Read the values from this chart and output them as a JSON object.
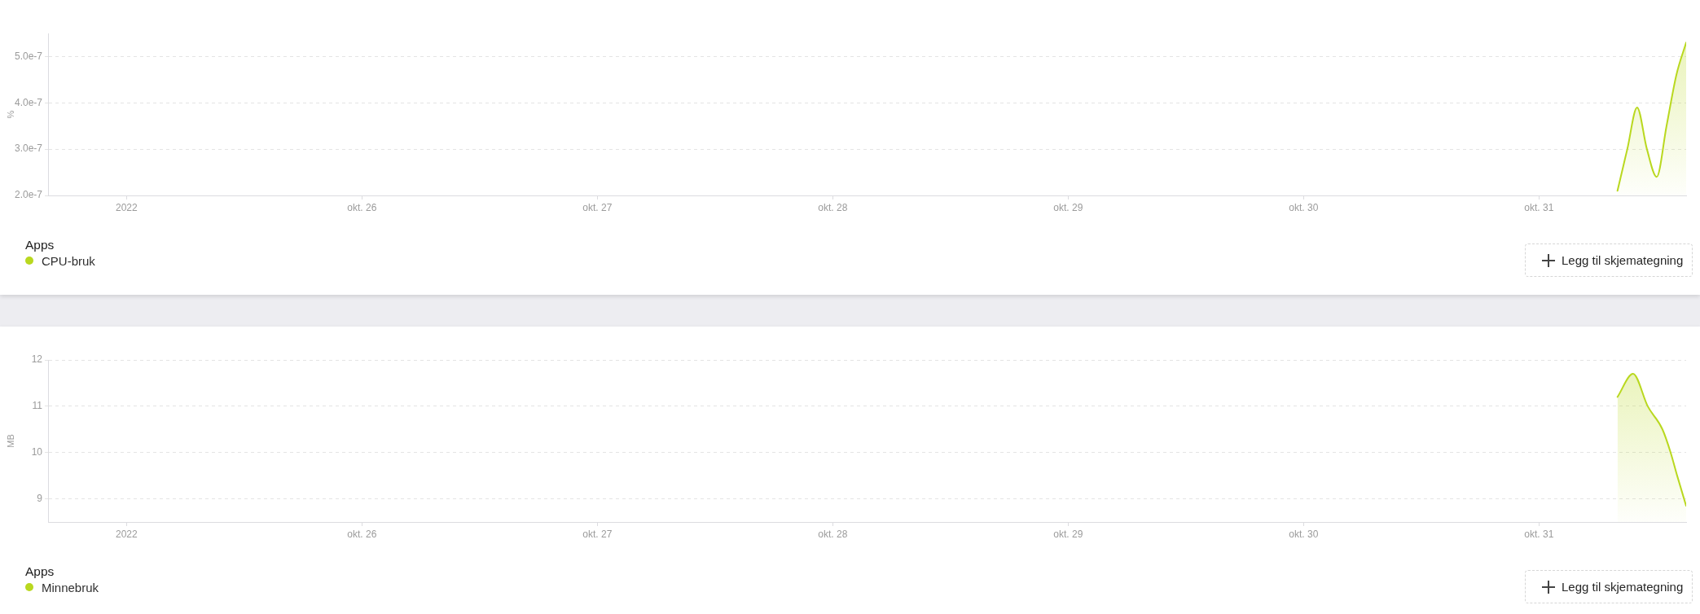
{
  "chart_data": [
    {
      "type": "area",
      "ylabel": "%",
      "x": [
        "2022-10-31T08:00",
        "2022-10-31T09:00",
        "2022-10-31T10:00",
        "2022-10-31T11:00",
        "2022-10-31T12:00",
        "2022-10-31T13:00",
        "2022-10-31T14:00",
        "2022-10-31T15:00"
      ],
      "series": [
        {
          "name": "CPU-bruk",
          "color": "#b9d81f",
          "values": [
            2.1e-07,
            3e-07,
            3.9e-07,
            3e-07,
            2.4e-07,
            3.5e-07,
            4.6e-07,
            5.3e-07
          ]
        }
      ],
      "xlim": [
        "2022-10-24T16:00",
        "2022-10-31T15:00"
      ],
      "xticks": [
        {
          "value": "2022-10-25",
          "label": "2022"
        },
        {
          "value": "2022-10-26",
          "label": "okt. 26"
        },
        {
          "value": "2022-10-27",
          "label": "okt. 27"
        },
        {
          "value": "2022-10-28",
          "label": "okt. 28"
        },
        {
          "value": "2022-10-29",
          "label": "okt. 29"
        },
        {
          "value": "2022-10-30",
          "label": "okt. 30"
        },
        {
          "value": "2022-10-31",
          "label": "okt. 31"
        }
      ],
      "ylim": [
        2e-07,
        5.5e-07
      ],
      "yticks": [
        {
          "value": 2e-07,
          "label": "2.0e-7"
        },
        {
          "value": 3e-07,
          "label": "3.0e-7"
        },
        {
          "value": 4e-07,
          "label": "4.0e-7"
        },
        {
          "value": 5e-07,
          "label": "5.0e-7"
        }
      ],
      "grid": "y",
      "legend": "bottom left",
      "legend_title": "Apps",
      "annotations": [
        "Legg til skjemategning"
      ]
    },
    {
      "type": "area",
      "ylabel": "MB",
      "x": [
        "2022-10-31T08:00",
        "2022-10-31T09:35",
        "2022-10-31T11:05",
        "2022-10-31T12:35",
        "2022-10-31T13:25",
        "2022-10-31T14:05",
        "2022-10-31T15:00"
      ],
      "series": [
        {
          "name": "Minnebruk",
          "color": "#b9d81f",
          "values": [
            11.2,
            11.7,
            11.0,
            10.5,
            10.0,
            9.5,
            8.85
          ]
        }
      ],
      "xlim": [
        "2022-10-24T16:00",
        "2022-10-31T15:00"
      ],
      "xticks": [
        {
          "value": "2022-10-25",
          "label": "2022"
        },
        {
          "value": "2022-10-26",
          "label": "okt. 26"
        },
        {
          "value": "2022-10-27",
          "label": "okt. 27"
        },
        {
          "value": "2022-10-28",
          "label": "okt. 28"
        },
        {
          "value": "2022-10-29",
          "label": "okt. 29"
        },
        {
          "value": "2022-10-30",
          "label": "okt. 30"
        },
        {
          "value": "2022-10-31",
          "label": "okt. 31"
        }
      ],
      "ylim": [
        8.5,
        12
      ],
      "yticks": [
        9,
        10,
        11,
        12
      ],
      "grid": "y",
      "legend": "bottom left",
      "legend_title": "Apps",
      "annotations": [
        "Legg til skjemategning"
      ]
    }
  ]
}
